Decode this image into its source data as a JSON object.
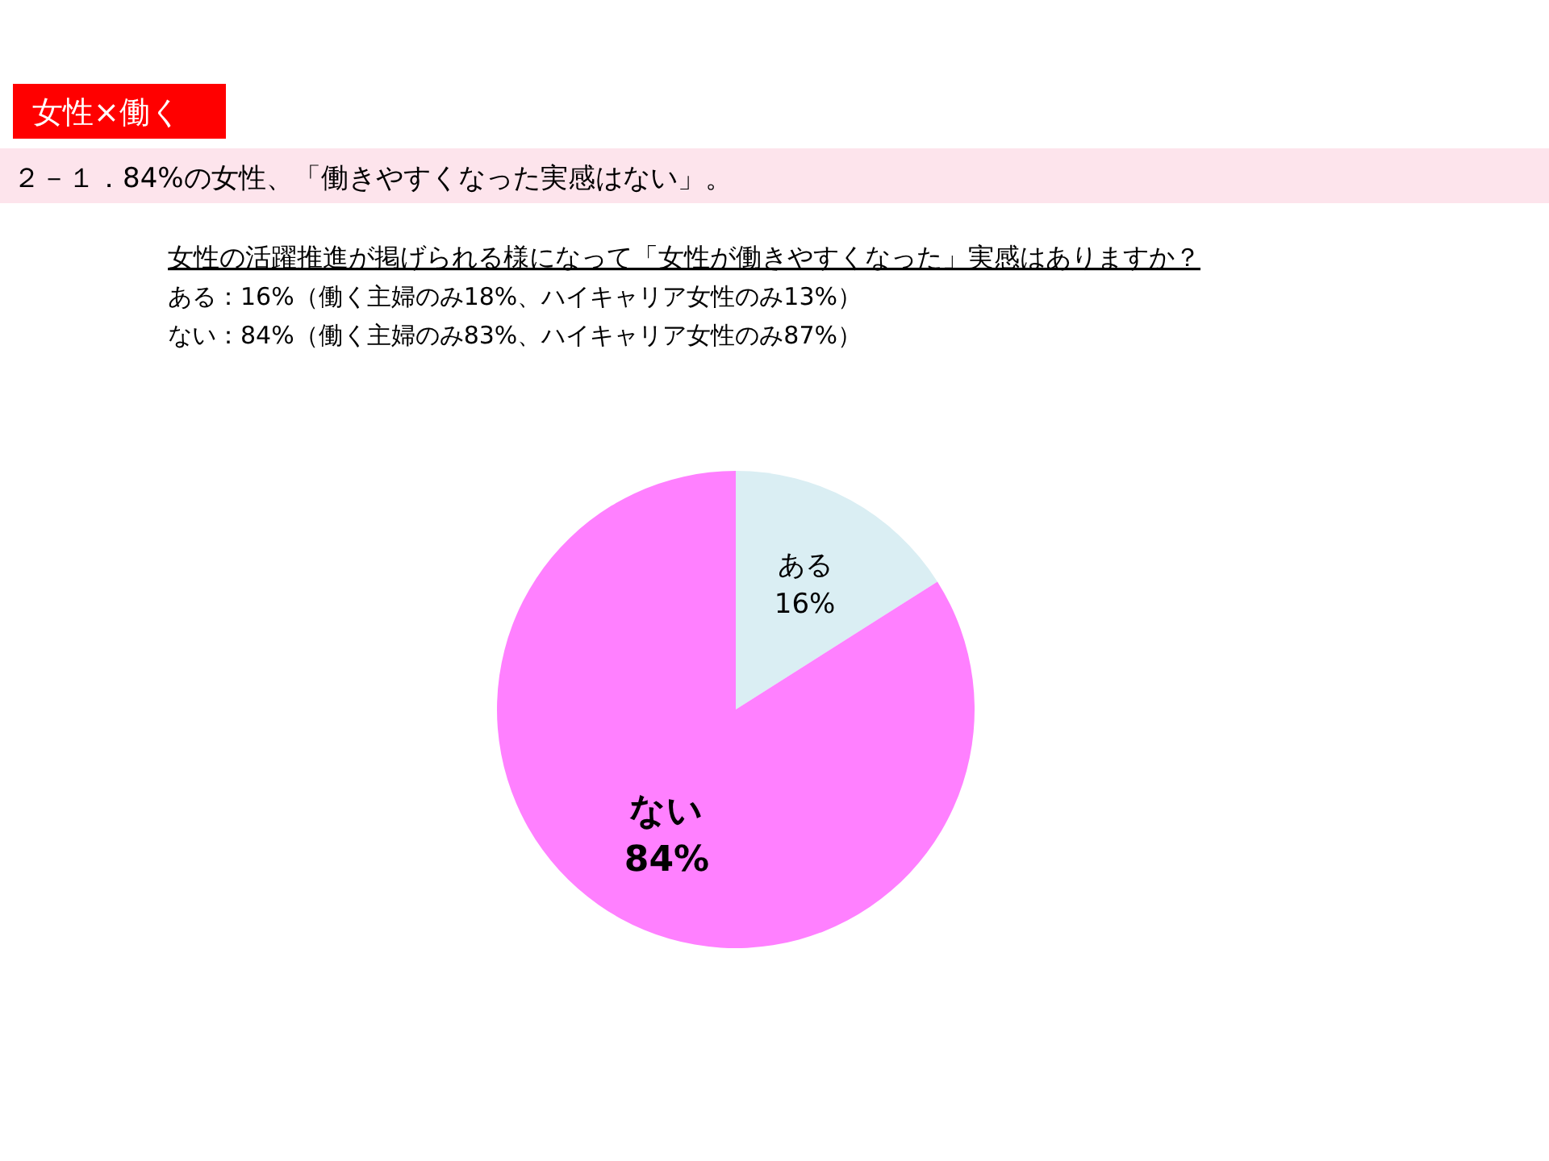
{
  "chart_data": {
    "type": "pie",
    "title": "女性×働く",
    "subtitle": "２－１．84%の女性、「働きやすくなった実感はない」。",
    "annotations": [
      "女性の活躍推進が掲げられる様になって「女性が働きやすくなった」実感はありますか？",
      "ある：16%（働く主婦のみ18%、ハイキャリア女性のみ13%）",
      "ない：84%（働く主婦のみ83%、ハイキャリア女性のみ87%）"
    ],
    "categories": [
      "ある",
      "ない"
    ],
    "values": [
      16,
      84
    ],
    "colors": [
      "#daeef3",
      "#ff80ff"
    ],
    "value_labels": [
      "16%",
      "84%"
    ]
  }
}
